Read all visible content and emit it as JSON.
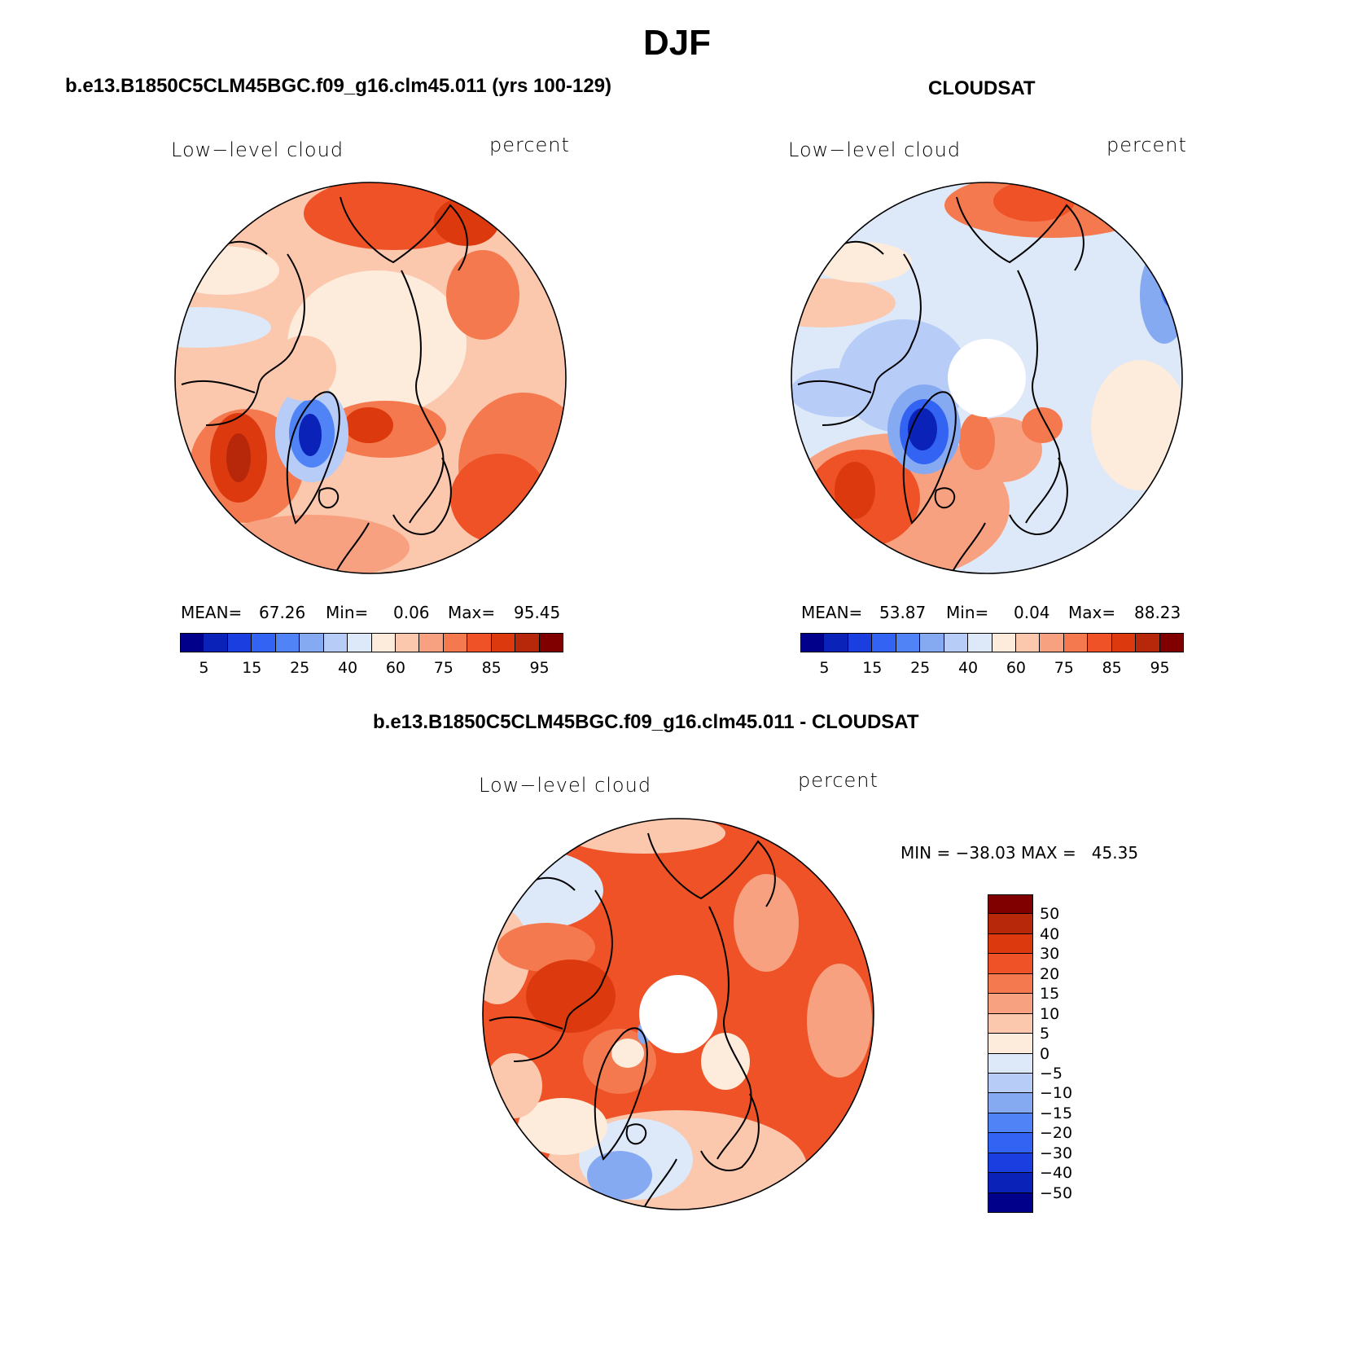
{
  "figure": {
    "title": "DJF",
    "panels": [
      {
        "id": "model",
        "title": "b.e13.B1850C5CLM45BGC.f09_g16.clm45.011 (yrs 100-129)",
        "variable_label": "Low−level cloud",
        "units_label": "percent",
        "stats": {
          "mean_label": "MEAN=",
          "mean": "67.26",
          "min_label": "Min=",
          "min": "0.06",
          "max_label": "Max=",
          "max": "95.45"
        }
      },
      {
        "id": "obs",
        "title": "CLOUDSAT",
        "variable_label": "Low−level cloud",
        "units_label": "percent",
        "stats": {
          "mean_label": "MEAN=",
          "mean": "53.87",
          "min_label": "Min=",
          "min": "0.04",
          "max_label": "Max=",
          "max": "88.23"
        }
      },
      {
        "id": "diff",
        "title": "b.e13.B1850C5CLM45BGC.f09_g16.clm45.011 - CLOUDSAT",
        "variable_label": "Low−level cloud",
        "units_label": "percent",
        "stats_text": "MIN = −38.03 MAX =   45.35"
      }
    ],
    "colorbar_abs": {
      "colors": [
        "#00008b",
        "#0b22b8",
        "#1a3ee0",
        "#3363f2",
        "#5083f5",
        "#86aaf2",
        "#b7ccf7",
        "#dde9f9",
        "#fdebdc",
        "#fbc7ad",
        "#f8a180",
        "#f4794f",
        "#ee5226",
        "#dc3a0e",
        "#b7280a",
        "#800000"
      ],
      "labels": [
        "5",
        "15",
        "25",
        "40",
        "60",
        "75",
        "85",
        "95"
      ]
    },
    "colorbar_diff": {
      "colors": [
        "#800000",
        "#b7280a",
        "#dc3a0e",
        "#ee5226",
        "#f4794f",
        "#f8a180",
        "#fbc7ad",
        "#fdebdc",
        "#dde9f9",
        "#b7ccf7",
        "#86aaf2",
        "#5083f5",
        "#3363f2",
        "#1a3ee0",
        "#0b22b8",
        "#00008b"
      ],
      "labels": [
        "50",
        "40",
        "30",
        "20",
        "15",
        "10",
        "5",
        "0",
        "−5",
        "−10",
        "−15",
        "−20",
        "−30",
        "−40",
        "−50"
      ]
    }
  }
}
